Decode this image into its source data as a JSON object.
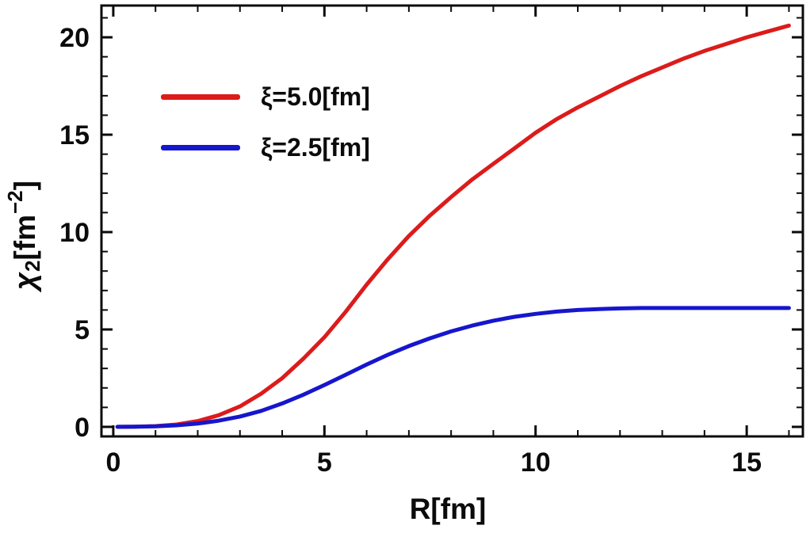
{
  "chart_data": {
    "type": "line",
    "title": "",
    "xlabel": "R[fm]",
    "ylabel": "chi_2 [fm^-2]",
    "ylabel_parts": {
      "chi": "χ",
      "sub": "2",
      "mid": "[fm",
      "sup": "−2",
      "close": "]"
    },
    "xlim": [
      -0.28,
      16.33
    ],
    "ylim": [
      -0.49,
      21.63
    ],
    "x_ticks_major": [
      0,
      5,
      10,
      15
    ],
    "x_tick_labels": [
      "0",
      "5",
      "10",
      "15"
    ],
    "x_ticks_minor_step": 1,
    "x_ticks_minor_range": [
      0,
      16
    ],
    "y_ticks_major": [
      0,
      5,
      10,
      15,
      20
    ],
    "y_tick_labels": [
      "0",
      "5",
      "10",
      "15",
      "20"
    ],
    "y_ticks_minor_step": 1,
    "y_ticks_minor_range": [
      0,
      21
    ],
    "grid": false,
    "frame": true,
    "legend_position": "top-left-inside",
    "frame_color": "#0b0b0b",
    "x": [
      0.1,
      0.5,
      1,
      1.5,
      2,
      2.5,
      3,
      3.5,
      4,
      4.5,
      5,
      5.5,
      6,
      6.5,
      7,
      7.5,
      8,
      8.5,
      9,
      9.5,
      10,
      10.5,
      11,
      11.5,
      12,
      12.5,
      13,
      13.5,
      14,
      14.5,
      15,
      15.5,
      16
    ],
    "series": [
      {
        "name": "xi-5.0-fm",
        "label": "ξ=5.0[fm]",
        "color": "#dc1b1b",
        "y": [
          0.0,
          0.01,
          0.04,
          0.12,
          0.3,
          0.6,
          1.05,
          1.7,
          2.5,
          3.5,
          4.6,
          5.9,
          7.3,
          8.6,
          9.8,
          10.85,
          11.8,
          12.7,
          13.5,
          14.3,
          15.1,
          15.8,
          16.4,
          16.95,
          17.5,
          18.0,
          18.45,
          18.9,
          19.3,
          19.65,
          20.0,
          20.3,
          20.6
        ]
      },
      {
        "name": "xi-2.5-fm",
        "label": "ξ=2.5[fm]",
        "color": "#1616cd",
        "y": [
          0.0,
          0.01,
          0.03,
          0.08,
          0.17,
          0.32,
          0.53,
          0.82,
          1.2,
          1.65,
          2.15,
          2.67,
          3.2,
          3.7,
          4.15,
          4.55,
          4.9,
          5.2,
          5.45,
          5.65,
          5.8,
          5.92,
          6.0,
          6.05,
          6.08,
          6.1,
          6.1,
          6.1,
          6.1,
          6.1,
          6.1,
          6.1,
          6.1
        ]
      }
    ]
  }
}
